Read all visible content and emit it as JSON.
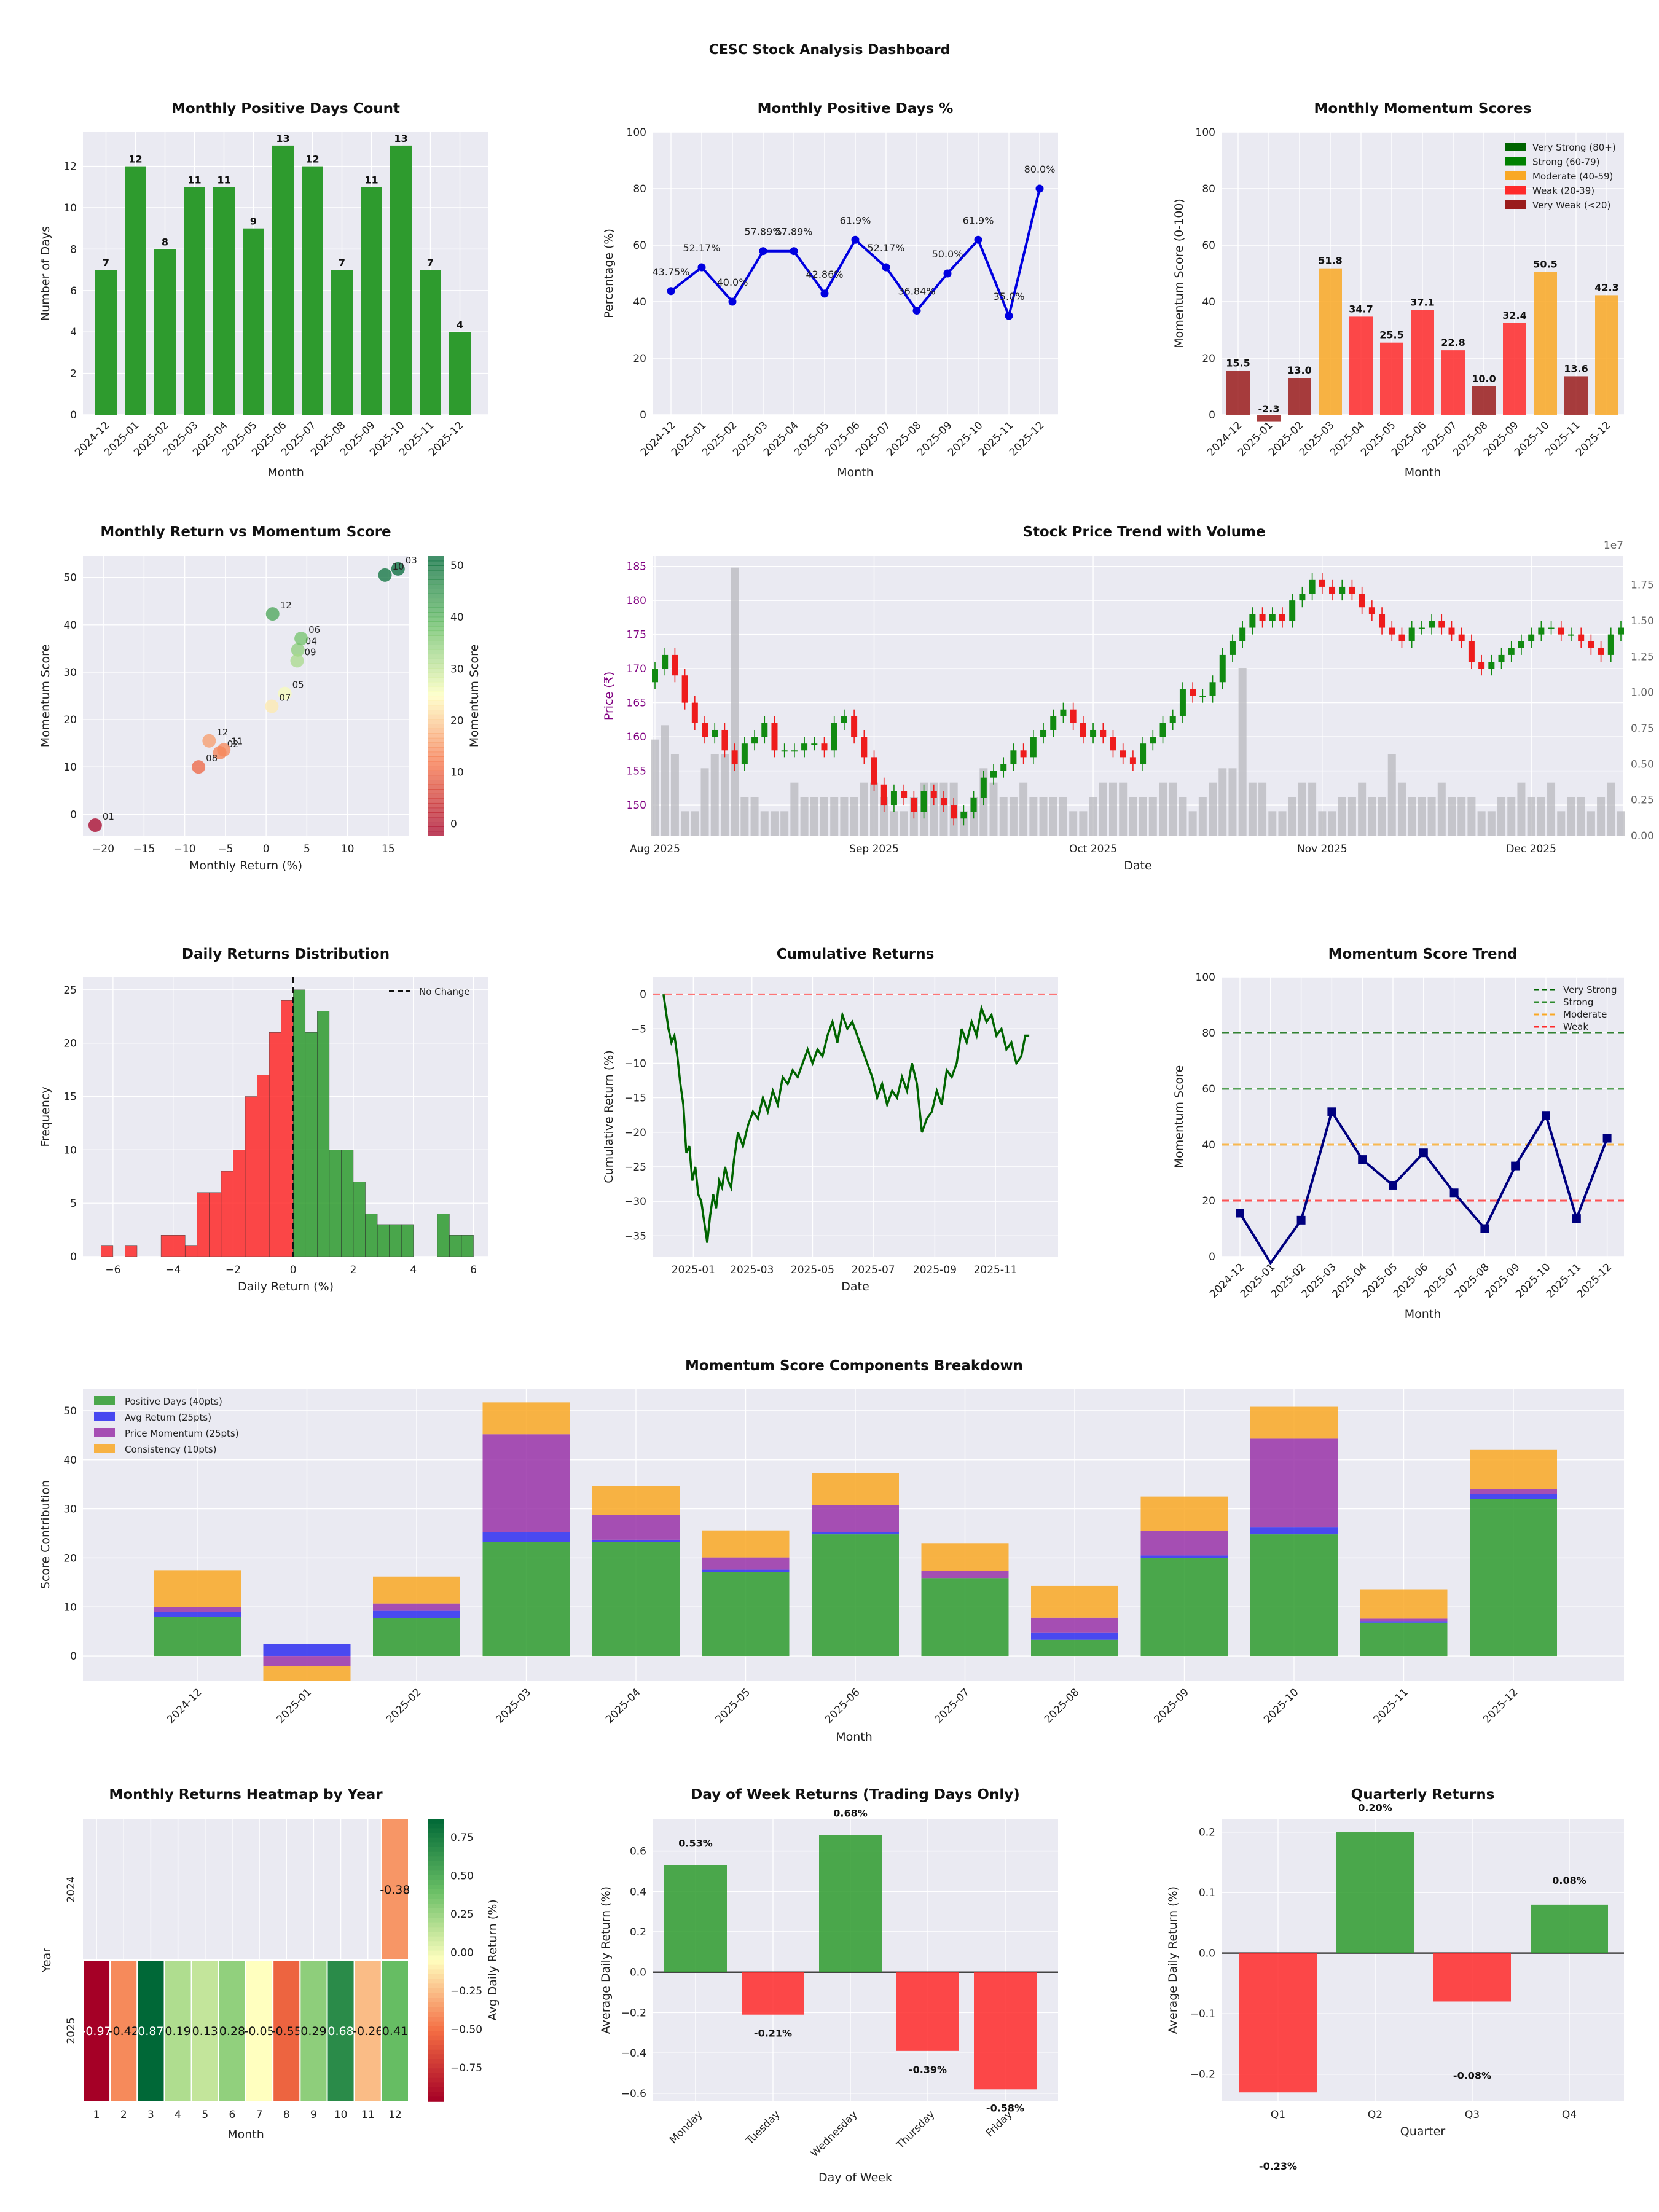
{
  "dashboard": {
    "title": "CESC Stock Analysis Dashboard"
  },
  "months": [
    "2024-12",
    "2025-01",
    "2025-02",
    "2025-03",
    "2025-04",
    "2025-05",
    "2025-06",
    "2025-07",
    "2025-08",
    "2025-09",
    "2025-10",
    "2025-11",
    "2025-12"
  ],
  "colors": {
    "green": "#2e9b2e",
    "red": "#ff2a2a",
    "darkred": "#9a1c1c",
    "orange": "#f9a825",
    "blue": "#0000e0",
    "navy": "#00007f",
    "darkgreen": "#006400",
    "gray": "#b8b8bd",
    "panel": "#eaeaf2",
    "grid": "#ffffff"
  },
  "chart_data": [
    {
      "id": "positive_days_count",
      "type": "bar",
      "title": "Monthly Positive Days Count",
      "xlabel": "Month",
      "ylabel": "Number of Days",
      "ylim": [
        0,
        13.65
      ],
      "yticks": [
        0,
        2,
        4,
        6,
        8,
        10,
        12
      ],
      "values": [
        7,
        12,
        8,
        11,
        11,
        9,
        13,
        12,
        7,
        11,
        13,
        7,
        4
      ]
    },
    {
      "id": "positive_days_pct",
      "type": "line",
      "title": "Monthly Positive Days %",
      "xlabel": "Month",
      "ylabel": "Percentage (%)",
      "ylim": [
        0,
        100
      ],
      "yticks": [
        0,
        20,
        40,
        60,
        80,
        100
      ],
      "values": [
        43.75,
        52.17,
        40.0,
        57.89,
        57.89,
        42.86,
        61.9,
        52.17,
        36.84,
        50.0,
        61.9,
        35.0,
        80.0
      ],
      "labels": [
        "43.75%",
        "52.17%",
        "40.0%",
        "57.89%",
        "57.89%",
        "42.86%",
        "61.9%",
        "52.17%",
        "36.84%",
        "50.0%",
        "61.9%",
        "35.0%",
        "80.0%"
      ]
    },
    {
      "id": "momentum_scores",
      "type": "bar",
      "title": "Monthly Momentum Scores",
      "xlabel": "Month",
      "ylabel": "Momentum Score (0-100)",
      "ylim": [
        0,
        100
      ],
      "yticks": [
        0,
        20,
        40,
        60,
        80,
        100
      ],
      "values": [
        15.5,
        -2.3,
        13.0,
        51.8,
        34.7,
        25.5,
        37.1,
        22.8,
        10.0,
        32.4,
        50.5,
        13.6,
        42.3
      ],
      "labels": [
        "15.5",
        "-2.3",
        "13.0",
        "51.8",
        "34.7",
        "25.5",
        "37.1",
        "22.8",
        "10.0",
        "32.4",
        "50.5",
        "13.6",
        "42.3"
      ],
      "legend": [
        {
          "name": "Very Strong (80+)",
          "color": "#006400"
        },
        {
          "name": "Strong (60-79)",
          "color": "#008000"
        },
        {
          "name": "Moderate (40-59)",
          "color": "#f9a825"
        },
        {
          "name": "Weak (20-39)",
          "color": "#ff2a2a"
        },
        {
          "name": "Very Weak (<20)",
          "color": "#9a1c1c"
        }
      ],
      "legend_position": "top-right"
    },
    {
      "id": "return_vs_momentum",
      "type": "scatter",
      "title": "Monthly Return vs Momentum Score",
      "xlabel": "Monthly Return (%)",
      "ylabel": "Momentum Score",
      "xlim": [
        -22.5,
        17.5
      ],
      "ylim": [
        -4.5,
        54.5
      ],
      "xticks": [
        -20,
        -15,
        -10,
        -5,
        0,
        5,
        10,
        15
      ],
      "yticks": [
        0,
        10,
        20,
        30,
        40,
        50
      ],
      "points": [
        {
          "label": "12",
          "x": -7.0,
          "y": 15.5
        },
        {
          "label": "01",
          "x": -21.0,
          "y": -2.3
        },
        {
          "label": "02",
          "x": -5.7,
          "y": 13.0
        },
        {
          "label": "03",
          "x": 16.2,
          "y": 51.8
        },
        {
          "label": "04",
          "x": 3.9,
          "y": 34.7
        },
        {
          "label": "05",
          "x": 2.3,
          "y": 25.5
        },
        {
          "label": "06",
          "x": 4.3,
          "y": 37.1
        },
        {
          "label": "07",
          "x": 0.7,
          "y": 22.8
        },
        {
          "label": "08",
          "x": -8.3,
          "y": 10.0
        },
        {
          "label": "09",
          "x": 3.8,
          "y": 32.4
        },
        {
          "label": "10",
          "x": 14.6,
          "y": 50.5
        },
        {
          "label": "11",
          "x": -5.2,
          "y": 13.6
        },
        {
          "label": "12",
          "x": 0.8,
          "y": 42.3
        }
      ],
      "colorbar": {
        "label": "Momentum Score",
        "range": [
          -2.3,
          51.8
        ],
        "ticks": [
          0,
          10,
          20,
          30,
          40,
          50
        ]
      }
    },
    {
      "id": "price_volume",
      "type": "candlestick",
      "title": "Stock Price Trend with Volume",
      "xlabel": "Date",
      "ylabel": "Price (₹)",
      "ylim": [
        145.5,
        186.5
      ],
      "yticks": [
        150,
        155,
        160,
        165,
        170,
        175,
        180,
        185
      ],
      "volume_ylim": [
        0,
        19500000
      ],
      "volume_ticks": [
        "0.00",
        "0.25",
        "0.50",
        "0.75",
        "1.00",
        "1.25",
        "1.50",
        "1.75"
      ],
      "volume_tick_values": [
        0,
        2500000,
        5000000,
        7500000,
        10000000,
        12500000,
        15000000,
        17500000
      ],
      "volume_exponent": "1e7",
      "date_ticks": [
        "Aug 2025",
        "Sep 2025",
        "Oct 2025",
        "Nov 2025",
        "Dec 2025"
      ],
      "date_tick_index": [
        0,
        22,
        44,
        67,
        88
      ],
      "close": [
        170,
        172,
        169,
        165,
        162,
        160,
        161,
        158,
        156,
        159,
        160,
        162,
        158,
        158,
        158,
        159,
        159,
        158,
        162,
        163,
        160,
        157,
        153,
        150,
        152,
        151,
        149,
        152,
        151,
        150,
        148,
        149,
        151,
        154,
        155,
        156,
        158,
        157,
        160,
        161,
        163,
        164,
        162,
        160,
        161,
        160,
        158,
        157,
        156,
        159,
        160,
        162,
        163,
        167,
        166,
        166,
        168,
        172,
        174,
        176,
        178,
        177,
        178,
        177,
        180,
        181,
        183,
        182,
        181,
        182,
        181,
        179,
        178,
        176,
        175,
        174,
        176,
        176,
        177,
        176,
        175,
        174,
        171,
        170,
        171,
        172,
        173,
        174,
        175,
        176,
        176,
        175,
        175,
        174,
        173,
        172,
        175,
        176
      ],
      "volume_millions": [
        6.7,
        7.7,
        5.7,
        1.7,
        1.7,
        4.7,
        5.7,
        5.7,
        18.7,
        2.7,
        2.7,
        1.7,
        1.7,
        1.7,
        3.7,
        2.7,
        2.7,
        2.7,
        2.7,
        2.7,
        2.7,
        3.7,
        3.7,
        2.7,
        1.7,
        1.7,
        2.7,
        3.7,
        3.7,
        3.7,
        3.7,
        1.7,
        2.7,
        4.7,
        3.7,
        2.7,
        2.7,
        3.7,
        2.7,
        2.7,
        2.7,
        2.7,
        1.7,
        1.7,
        2.7,
        3.7,
        3.7,
        3.7,
        2.7,
        2.7,
        2.7,
        3.7,
        3.7,
        2.7,
        1.7,
        2.7,
        3.7,
        4.7,
        4.7,
        11.7,
        3.7,
        3.7,
        1.7,
        1.7,
        2.7,
        3.7,
        3.7,
        1.7,
        1.7,
        2.7,
        2.7,
        3.7,
        2.7,
        2.7,
        5.7,
        3.7,
        2.7,
        2.7,
        2.7,
        3.7,
        2.7,
        2.7,
        2.7,
        1.7,
        1.7,
        2.7,
        2.7,
        3.7,
        2.7,
        2.7,
        3.7,
        1.7,
        2.7,
        2.7,
        1.7,
        2.7,
        3.7,
        1.7
      ]
    },
    {
      "id": "daily_returns_distribution",
      "type": "histogram",
      "title": "Daily Returns Distribution",
      "xlabel": "Daily Return (%)",
      "ylabel": "Frequency",
      "xlim": [
        -7.0,
        6.5
      ],
      "ylim": [
        0,
        26.2
      ],
      "xticks": [
        -6,
        -4,
        -2,
        0,
        2,
        4,
        6
      ],
      "yticks": [
        0,
        5,
        10,
        15,
        20,
        25
      ],
      "bin_width": 0.4,
      "bin_starts": [
        -6.4,
        -6.0,
        -5.6,
        -5.2,
        -4.8,
        -4.4,
        -4.0,
        -3.6,
        -3.2,
        -2.8,
        -2.4,
        -2.0,
        -1.6,
        -1.2,
        -0.8,
        -0.4,
        0.0,
        0.4,
        0.8,
        1.2,
        1.6,
        2.0,
        2.4,
        2.8,
        3.2,
        3.6,
        4.0,
        4.4,
        4.8,
        5.2,
        5.6
      ],
      "counts": [
        1,
        0,
        1,
        0,
        0,
        2,
        2,
        1,
        6,
        6,
        8,
        10,
        15,
        17,
        21,
        24,
        25,
        21,
        23,
        10,
        10,
        7,
        4,
        3,
        3,
        3,
        0,
        0,
        4,
        2,
        2
      ],
      "legend": [
        {
          "name": "No Change"
        }
      ],
      "legend_position": "top-right"
    },
    {
      "id": "cumulative_returns",
      "type": "line",
      "title": "Cumulative Returns",
      "xlabel": "Date",
      "ylabel": "Cumulative Return (%)",
      "ylim": [
        -38,
        2.5
      ],
      "yticks": [
        0,
        -5,
        -10,
        -15,
        -20,
        -25,
        -30,
        -35
      ],
      "date_ticks": [
        "2025-01",
        "2025-03",
        "2025-05",
        "2025-07",
        "2025-09",
        "2025-11"
      ],
      "x_anchor_days": [
        0,
        59,
        120,
        181,
        243,
        304
      ],
      "day_range": [
        -41,
        367
      ],
      "series_days": [
        -30,
        -28,
        -25,
        -22,
        -19,
        -16,
        -13,
        -10,
        -7,
        -4,
        -1,
        2,
        5,
        8,
        11,
        14,
        17,
        20,
        23,
        26,
        29,
        32,
        35,
        38,
        41,
        45,
        50,
        55,
        60,
        65,
        70,
        75,
        80,
        85,
        90,
        95,
        100,
        105,
        110,
        115,
        120,
        125,
        130,
        135,
        140,
        145,
        150,
        155,
        160,
        165,
        170,
        175,
        180,
        185,
        190,
        195,
        200,
        205,
        210,
        215,
        220,
        225,
        230,
        235,
        240,
        245,
        250,
        255,
        260,
        265,
        270,
        275,
        280,
        285,
        290,
        295,
        300,
        305,
        310,
        315,
        320,
        325,
        330,
        334,
        338
      ],
      "series": [
        {
          "values": [
            0,
            -2,
            -5,
            -7,
            -6,
            -9,
            -13,
            -16,
            -23,
            -22,
            -27,
            -25,
            -29,
            -30,
            -33,
            -36,
            -32,
            -29,
            -31,
            -27,
            -28,
            -25,
            -27,
            -28,
            -24,
            -20,
            -22,
            -19,
            -17,
            -18,
            -15,
            -17,
            -14,
            -16,
            -12,
            -13,
            -11,
            -12,
            -10,
            -8,
            -10,
            -8,
            -9,
            -6,
            -4,
            -7,
            -3,
            -5,
            -4,
            -6,
            -8,
            -10,
            -12,
            -15,
            -13,
            -16,
            -14,
            -15,
            -12,
            -14,
            -10,
            -13,
            -20,
            -18,
            -17,
            -14,
            -16,
            -11,
            -12,
            -10,
            -5,
            -7,
            -4,
            -6,
            -2,
            -4,
            -3,
            -6,
            -5,
            -8,
            -7,
            -10,
            -9,
            -6,
            -6
          ]
        }
      ],
      "reference_line": 0
    },
    {
      "id": "momentum_trend",
      "type": "line",
      "title": "Momentum Score Trend",
      "xlabel": "Month",
      "ylabel": "Momentum Score",
      "ylim": [
        0,
        100
      ],
      "yticks": [
        0,
        20,
        40,
        60,
        80,
        100
      ],
      "values": [
        15.5,
        -2.3,
        13.0,
        51.8,
        34.7,
        25.5,
        37.1,
        22.8,
        10.0,
        32.4,
        50.5,
        13.6,
        42.3
      ],
      "thresholds": [
        {
          "name": "Very Strong",
          "value": 80,
          "color": "#006400"
        },
        {
          "name": "Strong",
          "value": 60,
          "color": "#2e8b2e"
        },
        {
          "name": "Moderate",
          "value": 40,
          "color": "#f9a825"
        },
        {
          "name": "Weak",
          "value": 20,
          "color": "#ff2a2a"
        }
      ],
      "legend_position": "top-right"
    },
    {
      "id": "momentum_components",
      "type": "bar",
      "stacked": true,
      "title": "Momentum Score Components Breakdown",
      "xlabel": "Month",
      "ylabel": "Score Contribution",
      "ylim": [
        -5,
        54.5
      ],
      "yticks": [
        0,
        10,
        20,
        30,
        40,
        50
      ],
      "series": [
        {
          "name": "Positive Days (40pts)",
          "color": "#2e9b2e",
          "values": [
            8.0,
            0.0,
            7.7,
            23.2,
            23.2,
            17.1,
            24.8,
            15.9,
            3.3,
            20.0,
            24.8,
            6.8,
            32.0
          ]
        },
        {
          "name": "Avg Return (25pts)",
          "color": "#2d2df0",
          "values": [
            1.0,
            2.5,
            1.5,
            2.0,
            0.5,
            0.5,
            0.5,
            0.0,
            1.5,
            0.5,
            1.5,
            0.3,
            1.0
          ]
        },
        {
          "name": "Price Momentum (25pts)",
          "color": "#9932a8",
          "values": [
            1.0,
            -2.0,
            1.5,
            20.0,
            5.0,
            2.5,
            5.5,
            1.5,
            3.0,
            5.0,
            18.0,
            0.5,
            1.0
          ]
        },
        {
          "name": "Consistency (10pts)",
          "color": "#f9a825",
          "values": [
            7.5,
            -3.0,
            5.5,
            6.5,
            6.0,
            5.5,
            6.5,
            5.5,
            6.5,
            7.0,
            6.5,
            6.0,
            8.0
          ]
        }
      ],
      "legend_position": "top-left"
    },
    {
      "id": "monthly_returns_heatmap",
      "type": "heatmap",
      "title": "Monthly Returns Heatmap by Year",
      "xlabel": "Month",
      "ylabel": "Year",
      "x": [
        "1",
        "2",
        "3",
        "4",
        "5",
        "6",
        "7",
        "8",
        "9",
        "10",
        "11",
        "12"
      ],
      "y": [
        "2024",
        "2025"
      ],
      "values": [
        [
          null,
          null,
          null,
          null,
          null,
          null,
          null,
          null,
          null,
          null,
          null,
          -0.38
        ],
        [
          -0.97,
          -0.42,
          0.87,
          0.19,
          0.13,
          0.28,
          -0.05,
          -0.55,
          0.29,
          0.68,
          -0.26,
          0.41
        ]
      ],
      "labels": [
        [
          "",
          "",
          "",
          "",
          "",
          "",
          "",
          "",
          "",
          "",
          "",
          "-0.38"
        ],
        [
          "-0.97",
          "-0.42",
          "0.87",
          "0.19",
          "0.13",
          "0.28",
          "-0.05",
          "-0.55",
          "0.29",
          "0.68",
          "-0.26",
          "0.41"
        ]
      ],
      "colorbar": {
        "label": "Avg Daily Return (%)",
        "range": [
          -0.97,
          0.87
        ],
        "ticks": [
          0.75,
          0.5,
          0.25,
          0.0,
          -0.25,
          -0.5,
          -0.75
        ],
        "tick_labels": [
          "0.75",
          "0.50",
          "0.25",
          "0.00",
          "−0.25",
          "−0.50",
          "−0.75"
        ]
      }
    },
    {
      "id": "day_of_week_returns",
      "type": "bar",
      "title": "Day of Week Returns (Trading Days Only)",
      "xlabel": "Day of Week",
      "ylabel": "Average Daily Return (%)",
      "ylim": [
        -0.64,
        0.76
      ],
      "yticks": [
        0.6,
        0.4,
        0.2,
        0.0,
        -0.2,
        -0.4,
        -0.6
      ],
      "categories": [
        "Monday",
        "Tuesday",
        "Wednesday",
        "Thursday",
        "Friday"
      ],
      "values": [
        0.53,
        -0.21,
        0.68,
        -0.39,
        -0.58
      ],
      "labels": [
        "0.53%",
        "-0.21%",
        "0.68%",
        "-0.39%",
        "-0.58%"
      ]
    },
    {
      "id": "quarterly_returns",
      "type": "bar",
      "title": "Quarterly Returns",
      "xlabel": "Quarter",
      "ylabel": "Average Daily Return (%)",
      "ylim": [
        -0.245,
        0.222
      ],
      "yticks": [
        0.2,
        0.1,
        0.0,
        -0.1,
        -0.2
      ],
      "categories": [
        "Q1",
        "Q2",
        "Q3",
        "Q4"
      ],
      "values": [
        -0.23,
        0.2,
        -0.08,
        0.08
      ],
      "labels": [
        "-0.23%",
        "0.20%",
        "-0.08%",
        "0.08%"
      ]
    }
  ]
}
